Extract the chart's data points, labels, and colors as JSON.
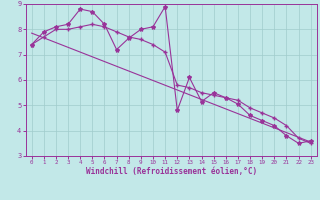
{
  "xlabel": "Windchill (Refroidissement éolien,°C)",
  "xlim": [
    -0.5,
    23.5
  ],
  "ylim": [
    3,
    9
  ],
  "xticks": [
    0,
    1,
    2,
    3,
    4,
    5,
    6,
    7,
    8,
    9,
    10,
    11,
    12,
    13,
    14,
    15,
    16,
    17,
    18,
    19,
    20,
    21,
    22,
    23
  ],
  "yticks": [
    3,
    4,
    5,
    6,
    7,
    8,
    9
  ],
  "bg_color": "#c2e8e8",
  "grid_color": "#a0cccc",
  "line_color": "#993399",
  "line1_x": [
    0,
    1,
    2,
    3,
    4,
    5,
    6,
    7,
    8,
    9,
    10,
    11,
    12,
    13,
    14,
    15,
    16,
    17,
    18,
    19,
    20,
    21,
    22,
    23
  ],
  "line1_y": [
    7.4,
    7.9,
    8.1,
    8.2,
    8.8,
    8.7,
    8.2,
    7.2,
    7.65,
    8.0,
    8.1,
    8.9,
    4.8,
    6.1,
    5.15,
    5.5,
    5.3,
    5.05,
    4.6,
    4.4,
    4.2,
    3.8,
    3.5,
    3.6
  ],
  "line2_x": [
    0,
    1,
    2,
    3,
    4,
    5,
    6,
    7,
    8,
    9,
    10,
    11,
    12,
    13,
    14,
    15,
    16,
    17,
    18,
    19,
    20,
    21,
    22,
    23
  ],
  "line2_y": [
    7.4,
    7.7,
    8.0,
    8.0,
    8.1,
    8.2,
    8.1,
    7.9,
    7.7,
    7.6,
    7.4,
    7.1,
    5.8,
    5.7,
    5.5,
    5.4,
    5.3,
    5.2,
    4.9,
    4.7,
    4.5,
    4.2,
    3.7,
    3.5
  ],
  "line3_x": [
    0,
    23
  ],
  "line3_y": [
    7.85,
    3.55
  ]
}
